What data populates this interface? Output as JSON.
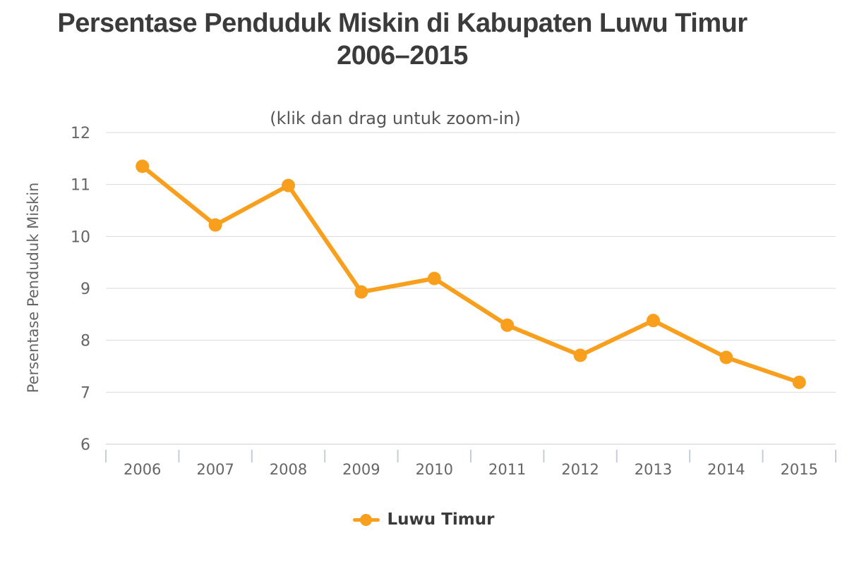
{
  "chart_data": {
    "type": "line",
    "title_line1": "Persentase Penduduk Miskin di Kabupaten Luwu Timur",
    "title_line2": "2006–2015",
    "subtitle": "(klik dan drag untuk zoom-in)",
    "categories": [
      "2006",
      "2007",
      "2008",
      "2009",
      "2010",
      "2011",
      "2012",
      "2013",
      "2014",
      "2015"
    ],
    "series": [
      {
        "name": "Luwu Timur",
        "color": "#F8A01D",
        "values": [
          11.35,
          10.22,
          10.98,
          8.93,
          9.19,
          8.29,
          7.71,
          8.38,
          7.67,
          7.19
        ]
      }
    ],
    "xlabel": "",
    "ylabel": "Persentase Penduduk Miskin",
    "ylim": [
      6,
      12
    ],
    "ytick_step": 1,
    "grid": true,
    "legend_position": "bottom",
    "marker": "circle"
  },
  "colors": {
    "series_orange": "#F8A01D",
    "grid": "#D9D9D9",
    "axis_line": "#C9CBCD",
    "tick": "#C3CEDA",
    "axis_label": "#666666",
    "title": "#3B3B3B",
    "subtitle": "#555555",
    "legend_label": "#3A3A3A"
  }
}
